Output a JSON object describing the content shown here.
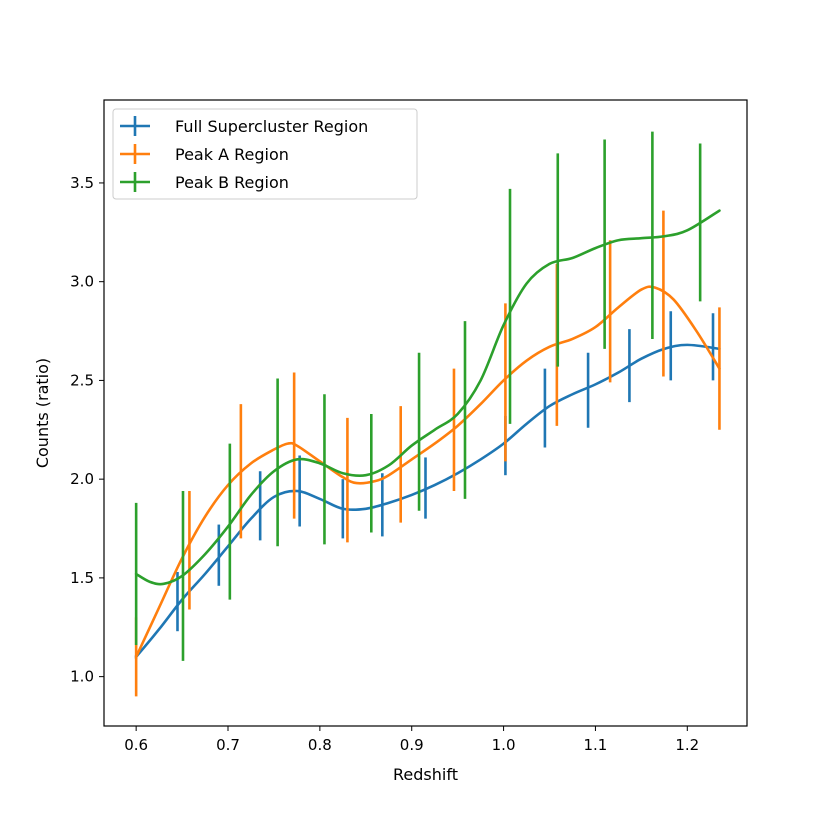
{
  "chart_data": {
    "type": "line",
    "title": "",
    "xlabel": "Redshift",
    "ylabel": "Counts (ratio)",
    "xlim": [
      0.565,
      1.265
    ],
    "ylim": [
      0.75,
      3.92
    ],
    "xticks": [
      0.6,
      0.7,
      0.8,
      0.9,
      1.0,
      1.1,
      1.2
    ],
    "xtick_labels": [
      "0.6",
      "0.7",
      "0.8",
      "0.9",
      "1.0",
      "1.1",
      "1.2"
    ],
    "yticks": [
      1.0,
      1.5,
      2.0,
      2.5,
      3.0,
      3.5
    ],
    "ytick_labels": [
      "1.0",
      "1.5",
      "2.0",
      "2.5",
      "3.0",
      "3.5"
    ],
    "grid": false,
    "legend_position": "top-left",
    "series": [
      {
        "name": "Full Supercluster Region",
        "color": "#1f77b4",
        "curve": [
          [
            0.6,
            1.1
          ],
          [
            0.625,
            1.24
          ],
          [
            0.65,
            1.39
          ],
          [
            0.675,
            1.52
          ],
          [
            0.7,
            1.66
          ],
          [
            0.725,
            1.8
          ],
          [
            0.75,
            1.91
          ],
          [
            0.775,
            1.94
          ],
          [
            0.8,
            1.9
          ],
          [
            0.825,
            1.85
          ],
          [
            0.85,
            1.85
          ],
          [
            0.875,
            1.88
          ],
          [
            0.9,
            1.92
          ],
          [
            0.925,
            1.97
          ],
          [
            0.95,
            2.03
          ],
          [
            0.975,
            2.1
          ],
          [
            1.0,
            2.18
          ],
          [
            1.025,
            2.28
          ],
          [
            1.05,
            2.37
          ],
          [
            1.075,
            2.43
          ],
          [
            1.1,
            2.48
          ],
          [
            1.125,
            2.54
          ],
          [
            1.15,
            2.61
          ],
          [
            1.175,
            2.66
          ],
          [
            1.2,
            2.68
          ],
          [
            1.235,
            2.66
          ]
        ],
        "errorbars": [
          {
            "x": 0.6,
            "y": 1.1,
            "lo": 1.09,
            "hi": 1.11
          },
          {
            "x": 0.645,
            "y": 1.38,
            "lo": 1.23,
            "hi": 1.53
          },
          {
            "x": 0.69,
            "y": 1.61,
            "lo": 1.46,
            "hi": 1.77
          },
          {
            "x": 0.735,
            "y": 1.86,
            "lo": 1.69,
            "hi": 2.04
          },
          {
            "x": 0.778,
            "y": 1.93,
            "lo": 1.76,
            "hi": 2.12
          },
          {
            "x": 0.825,
            "y": 1.85,
            "lo": 1.7,
            "hi": 2.0
          },
          {
            "x": 0.868,
            "y": 1.87,
            "lo": 1.71,
            "hi": 2.03
          },
          {
            "x": 0.915,
            "y": 1.95,
            "lo": 1.8,
            "hi": 2.11
          },
          {
            "x": 1.002,
            "y": 2.18,
            "lo": 2.02,
            "hi": 2.32
          },
          {
            "x": 1.045,
            "y": 2.36,
            "lo": 2.16,
            "hi": 2.56
          },
          {
            "x": 1.092,
            "y": 2.45,
            "lo": 2.26,
            "hi": 2.64
          },
          {
            "x": 1.137,
            "y": 2.57,
            "lo": 2.39,
            "hi": 2.76
          },
          {
            "x": 1.182,
            "y": 2.67,
            "lo": 2.5,
            "hi": 2.85
          },
          {
            "x": 1.228,
            "y": 2.67,
            "lo": 2.5,
            "hi": 2.84
          }
        ]
      },
      {
        "name": "Peak A Region",
        "color": "#ff7f0e",
        "curve": [
          [
            0.6,
            1.1
          ],
          [
            0.625,
            1.35
          ],
          [
            0.65,
            1.6
          ],
          [
            0.675,
            1.81
          ],
          [
            0.7,
            1.97
          ],
          [
            0.725,
            2.08
          ],
          [
            0.75,
            2.15
          ],
          [
            0.765,
            2.18
          ],
          [
            0.775,
            2.17
          ],
          [
            0.8,
            2.09
          ],
          [
            0.825,
            2.01
          ],
          [
            0.84,
            1.98
          ],
          [
            0.86,
            1.99
          ],
          [
            0.875,
            2.02
          ],
          [
            0.9,
            2.1
          ],
          [
            0.925,
            2.18
          ],
          [
            0.95,
            2.27
          ],
          [
            0.975,
            2.38
          ],
          [
            1.0,
            2.5
          ],
          [
            1.025,
            2.6
          ],
          [
            1.05,
            2.67
          ],
          [
            1.075,
            2.71
          ],
          [
            1.1,
            2.77
          ],
          [
            1.125,
            2.87
          ],
          [
            1.15,
            2.96
          ],
          [
            1.165,
            2.97
          ],
          [
            1.185,
            2.91
          ],
          [
            1.21,
            2.75
          ],
          [
            1.235,
            2.56
          ]
        ],
        "errorbars": [
          {
            "x": 0.6,
            "y": 1.1,
            "lo": 0.9,
            "hi": 1.3
          },
          {
            "x": 0.658,
            "y": 1.64,
            "lo": 1.34,
            "hi": 1.94
          },
          {
            "x": 0.714,
            "y": 2.04,
            "lo": 1.7,
            "hi": 2.38
          },
          {
            "x": 0.772,
            "y": 2.17,
            "lo": 1.8,
            "hi": 2.54
          },
          {
            "x": 0.83,
            "y": 1.99,
            "lo": 1.68,
            "hi": 2.31
          },
          {
            "x": 0.888,
            "y": 2.07,
            "lo": 1.78,
            "hi": 2.37
          },
          {
            "x": 0.946,
            "y": 2.25,
            "lo": 1.94,
            "hi": 2.56
          },
          {
            "x": 1.002,
            "y": 2.49,
            "lo": 2.09,
            "hi": 2.89
          },
          {
            "x": 1.058,
            "y": 2.68,
            "lo": 2.27,
            "hi": 3.09
          },
          {
            "x": 1.116,
            "y": 2.84,
            "lo": 2.49,
            "hi": 3.21
          },
          {
            "x": 1.174,
            "y": 2.94,
            "lo": 2.52,
            "hi": 3.36
          },
          {
            "x": 1.235,
            "y": 2.56,
            "lo": 2.25,
            "hi": 2.87
          }
        ]
      },
      {
        "name": "Peak B Region",
        "color": "#2ca02c",
        "curve": [
          [
            0.6,
            1.52
          ],
          [
            0.615,
            1.48
          ],
          [
            0.63,
            1.47
          ],
          [
            0.65,
            1.51
          ],
          [
            0.675,
            1.62
          ],
          [
            0.7,
            1.76
          ],
          [
            0.725,
            1.92
          ],
          [
            0.75,
            2.04
          ],
          [
            0.775,
            2.1
          ],
          [
            0.8,
            2.08
          ],
          [
            0.825,
            2.03
          ],
          [
            0.85,
            2.02
          ],
          [
            0.875,
            2.07
          ],
          [
            0.9,
            2.17
          ],
          [
            0.925,
            2.25
          ],
          [
            0.95,
            2.33
          ],
          [
            0.975,
            2.5
          ],
          [
            1.0,
            2.78
          ],
          [
            1.025,
            2.99
          ],
          [
            1.05,
            3.09
          ],
          [
            1.075,
            3.12
          ],
          [
            1.1,
            3.17
          ],
          [
            1.125,
            3.21
          ],
          [
            1.15,
            3.22
          ],
          [
            1.175,
            3.23
          ],
          [
            1.2,
            3.26
          ],
          [
            1.235,
            3.36
          ]
        ],
        "errorbars": [
          {
            "x": 0.6,
            "y": 1.52,
            "lo": 1.16,
            "hi": 1.88
          },
          {
            "x": 0.651,
            "y": 1.51,
            "lo": 1.08,
            "hi": 1.94
          },
          {
            "x": 0.702,
            "y": 1.79,
            "lo": 1.39,
            "hi": 2.18
          },
          {
            "x": 0.754,
            "y": 2.08,
            "lo": 1.66,
            "hi": 2.51
          },
          {
            "x": 0.805,
            "y": 2.05,
            "lo": 1.67,
            "hi": 2.43
          },
          {
            "x": 0.856,
            "y": 2.03,
            "lo": 1.73,
            "hi": 2.33
          },
          {
            "x": 0.908,
            "y": 2.24,
            "lo": 1.84,
            "hi": 2.64
          },
          {
            "x": 0.958,
            "y": 2.35,
            "lo": 1.9,
            "hi": 2.8
          },
          {
            "x": 1.007,
            "y": 2.87,
            "lo": 2.28,
            "hi": 3.47
          },
          {
            "x": 1.059,
            "y": 3.11,
            "lo": 2.57,
            "hi": 3.65
          },
          {
            "x": 1.11,
            "y": 3.19,
            "lo": 2.66,
            "hi": 3.72
          },
          {
            "x": 1.162,
            "y": 3.23,
            "lo": 2.71,
            "hi": 3.76
          },
          {
            "x": 1.214,
            "y": 3.3,
            "lo": 2.9,
            "hi": 3.7
          }
        ]
      }
    ]
  }
}
